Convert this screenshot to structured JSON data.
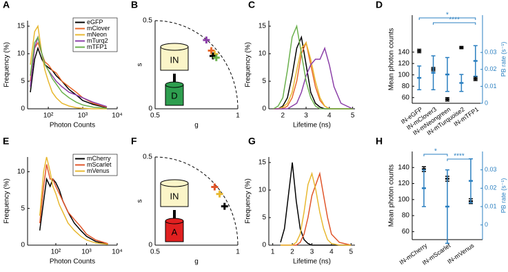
{
  "chart_data": [
    {
      "type": "line",
      "label": "A",
      "xlabel": "Photon Counts",
      "ylabel": "Frequency (%)",
      "log_x": true,
      "legend": "upper right",
      "x": [
        30,
        40,
        50,
        65,
        80,
        100,
        130,
        170,
        250,
        400,
        650,
        1000,
        2000,
        5000
      ],
      "series": [
        {
          "name": "eGFP",
          "color": "#000000",
          "values": [
            3,
            9,
            11,
            9,
            8,
            7.5,
            7,
            6,
            5,
            3.5,
            2.5,
            1.5,
            0.8,
            0.2
          ]
        },
        {
          "name": "mClover",
          "color": "#e8682a",
          "values": [
            5,
            11,
            12,
            10,
            8.5,
            8,
            7,
            6.5,
            5,
            4,
            3,
            2,
            1,
            0.3
          ]
        },
        {
          "name": "mNeon",
          "color": "#e8b830",
          "values": [
            8,
            14,
            15,
            10,
            7,
            5,
            3,
            2,
            1,
            0.5,
            0.2,
            0.1,
            0,
            0
          ]
        },
        {
          "name": "mTurq2",
          "color": "#8b3fa8",
          "values": [
            4,
            11,
            13,
            10,
            8,
            7,
            6,
            5,
            4,
            3,
            2.5,
            2,
            1.2,
            0.4
          ]
        },
        {
          "name": "mTFP1",
          "color": "#6ab04c",
          "values": [
            6,
            12,
            13,
            10,
            8,
            7,
            5.5,
            4.5,
            3,
            2,
            1.2,
            0.7,
            0.3,
            0.1
          ]
        }
      ],
      "xlim": [
        25,
        10000
      ],
      "ylim": [
        0,
        16
      ],
      "xticks": [
        {
          "value": 100,
          "label": "10²"
        },
        {
          "value": 1000,
          "label": "10³"
        },
        {
          "value": 10000,
          "label": "10⁴"
        }
      ],
      "yticks": [
        0,
        5,
        10,
        15
      ]
    },
    {
      "type": "scatter",
      "label": "B",
      "xlabel": "g",
      "ylabel": "s",
      "x": [
        0.81,
        0.84,
        0.86,
        0.85,
        0.87
      ],
      "y": [
        0.39,
        0.33,
        0.31,
        0.3,
        0.29
      ],
      "colors": [
        "#8b3fa8",
        "#e8682a",
        "#e8b830",
        "#000000",
        "#6ab04c"
      ],
      "xlim": [
        0.5,
        1
      ],
      "ylim": [
        0,
        0.5
      ],
      "xticks": [
        0.5,
        1
      ],
      "yticks": [
        0,
        0.5
      ],
      "annotations": [
        "IN",
        "D"
      ],
      "diagram_color": "#2e9e4f"
    },
    {
      "type": "line",
      "label": "C",
      "xlabel": "Lifetime (ns)",
      "ylabel": "Frequency (%)",
      "x": [
        1.6,
        1.8,
        2.0,
        2.2,
        2.4,
        2.6,
        2.8,
        3.0,
        3.2,
        3.4,
        3.6,
        3.8,
        4.0,
        4.2,
        4.5,
        5.0
      ],
      "series": [
        {
          "color": "#000000",
          "values": [
            0,
            0,
            0.5,
            2,
            6,
            11,
            13,
            8,
            3,
            1,
            0.3,
            0,
            0,
            0,
            0,
            0
          ]
        },
        {
          "color": "#e8682a",
          "values": [
            0,
            0,
            0,
            0.5,
            2,
            5,
            10,
            12,
            8,
            4,
            1.5,
            0.5,
            0,
            0,
            0,
            0
          ]
        },
        {
          "color": "#e8b830",
          "values": [
            0,
            0,
            0.3,
            1,
            3,
            7,
            11,
            12,
            9,
            5,
            2,
            0.5,
            0,
            0,
            0,
            0
          ]
        },
        {
          "color": "#8b3fa8",
          "values": [
            0,
            0,
            0,
            0,
            0.5,
            1,
            3,
            6,
            8,
            9,
            9,
            11,
            8,
            4,
            1,
            0
          ]
        },
        {
          "color": "#6ab04c",
          "values": [
            0,
            0.5,
            2,
            7,
            13,
            15,
            10,
            5,
            2,
            0.5,
            0,
            0,
            0,
            0,
            0,
            0
          ]
        }
      ],
      "xlim": [
        1.4,
        5.1
      ],
      "ylim": [
        0,
        16
      ],
      "xticks": [
        2,
        3,
        4,
        5
      ],
      "yticks": [
        0,
        5,
        10,
        15
      ]
    },
    {
      "type": "errorbar",
      "label": "D",
      "ylabel": "Mean photon counts",
      "y2label": "PB rate (s⁻¹)",
      "categories": [
        "IN-eGFP",
        "IN-mClover3",
        "IN-mNeongreen",
        "IN-mTurquoise2",
        "IN-mTFP1"
      ],
      "series": [
        {
          "color": "#000000",
          "values": [
            142,
            110,
            57,
            148,
            93
          ],
          "errors": [
            3,
            3,
            3,
            2,
            3
          ]
        },
        {
          "color": "#2a7fc0",
          "axis": "y2",
          "values": [
            0.015,
            0.018,
            0.017,
            0.012,
            0.025
          ],
          "errors": [
            0.007,
            0.01,
            0.01,
            0.005,
            0.009
          ]
        }
      ],
      "ylim": [
        50,
        205
      ],
      "yticks": [
        60,
        80,
        100,
        120,
        140
      ],
      "y2lim": [
        0,
        0.052
      ],
      "y2ticks": [
        0,
        0.01,
        0.02,
        0.03
      ],
      "significance": [
        {
          "text": "*",
          "from": 0,
          "to": 4
        },
        {
          "text": "****",
          "from": 1,
          "to": 4
        }
      ]
    },
    {
      "type": "line",
      "label": "E",
      "xlabel": "Photon Counts",
      "ylabel": "Frequency (%)",
      "log_x": true,
      "legend": "upper right",
      "x": [
        30,
        40,
        50,
        65,
        80,
        100,
        130,
        170,
        250,
        400,
        650,
        1000,
        2000,
        5000
      ],
      "series": [
        {
          "name": "mCherry",
          "color": "#000000",
          "values": [
            2,
            6,
            9,
            8,
            9,
            8.5,
            7.5,
            6,
            4.5,
            3,
            2,
            1.2,
            0.5,
            0.1
          ]
        },
        {
          "name": "mScarlet",
          "color": "#e0552a",
          "values": [
            3,
            8,
            11,
            9,
            9,
            8,
            7,
            6,
            4.5,
            3.5,
            2.5,
            1.5,
            0.7,
            0.2
          ]
        },
        {
          "name": "mVenus",
          "color": "#e8b830",
          "values": [
            4,
            10,
            12,
            10,
            8,
            7,
            5.5,
            4.5,
            3,
            2,
            1.2,
            0.7,
            0.3,
            0.1
          ]
        }
      ],
      "xlim": [
        12,
        10000
      ],
      "ylim": [
        0,
        12
      ],
      "xticks": [
        {
          "value": 100,
          "label": "10²"
        },
        {
          "value": 1000,
          "label": "10³"
        },
        {
          "value": 10000,
          "label": "10⁴"
        }
      ],
      "yticks": [
        0,
        5,
        10
      ]
    },
    {
      "type": "scatter",
      "label": "F",
      "xlabel": "g",
      "ylabel": "s",
      "x": [
        0.86,
        0.89,
        0.92
      ],
      "y": [
        0.33,
        0.29,
        0.22
      ],
      "colors": [
        "#e0552a",
        "#e8b830",
        "#000000"
      ],
      "xlim": [
        0.5,
        1
      ],
      "ylim": [
        0,
        0.5
      ],
      "xticks": [
        0.5,
        1
      ],
      "yticks": [
        0,
        0.5
      ],
      "annotations": [
        "IN",
        "A"
      ],
      "diagram_color": "#e02020"
    },
    {
      "type": "line",
      "label": "G",
      "xlabel": "Lifetime (ns)",
      "ylabel": "Frequency (%)",
      "x": [
        1.4,
        1.6,
        1.8,
        2.0,
        2.2,
        2.4,
        2.6,
        2.8,
        3.0,
        3.2,
        3.4,
        3.6,
        3.8,
        4.0,
        4.4,
        5.0
      ],
      "series": [
        {
          "color": "#000000",
          "values": [
            0.5,
            3,
            9,
            15,
            8,
            3,
            1,
            0.3,
            0,
            0,
            0,
            0,
            0,
            0,
            0,
            0
          ]
        },
        {
          "color": "#e0552a",
          "values": [
            0,
            0,
            0,
            0,
            0,
            0.5,
            2,
            5,
            9,
            11,
            13,
            9,
            5,
            2,
            0.5,
            0
          ]
        },
        {
          "color": "#e8b830",
          "values": [
            0,
            0,
            0,
            0,
            0.5,
            2,
            6,
            11,
            13,
            10,
            6,
            3,
            1,
            0.3,
            0,
            0
          ]
        }
      ],
      "xlim": [
        0.8,
        5.2
      ],
      "ylim": [
        0,
        16
      ],
      "xticks": [
        1,
        2,
        3,
        4,
        5
      ],
      "yticks": [
        0,
        5,
        10,
        15
      ]
    },
    {
      "type": "errorbar",
      "label": "H",
      "ylabel": "Mean photon counts",
      "y2label": "PB rate (s⁻¹)",
      "categories": [
        "IN-mCherry",
        "IN-mScarlet",
        "IN-mVenus"
      ],
      "series": [
        {
          "color": "#000000",
          "values": [
            138,
            126,
            98
          ],
          "errors": [
            3,
            3,
            3
          ]
        },
        {
          "color": "#2a7fc0",
          "axis": "y2",
          "values": [
            0.02,
            0.01,
            0.024
          ],
          "errors": [
            0.01,
            0.02,
            0.012
          ]
        }
      ],
      "ylim": [
        50,
        160
      ],
      "yticks": [
        60,
        80,
        100,
        120,
        140
      ],
      "y2lim": [
        -0.008,
        0.04
      ],
      "y2ticks": [
        0,
        0.01,
        0.02,
        0.03
      ],
      "significance": [
        {
          "text": "*",
          "from": 0,
          "to": 1
        },
        {
          "text": "****",
          "from": 1,
          "to": 2
        }
      ]
    }
  ]
}
